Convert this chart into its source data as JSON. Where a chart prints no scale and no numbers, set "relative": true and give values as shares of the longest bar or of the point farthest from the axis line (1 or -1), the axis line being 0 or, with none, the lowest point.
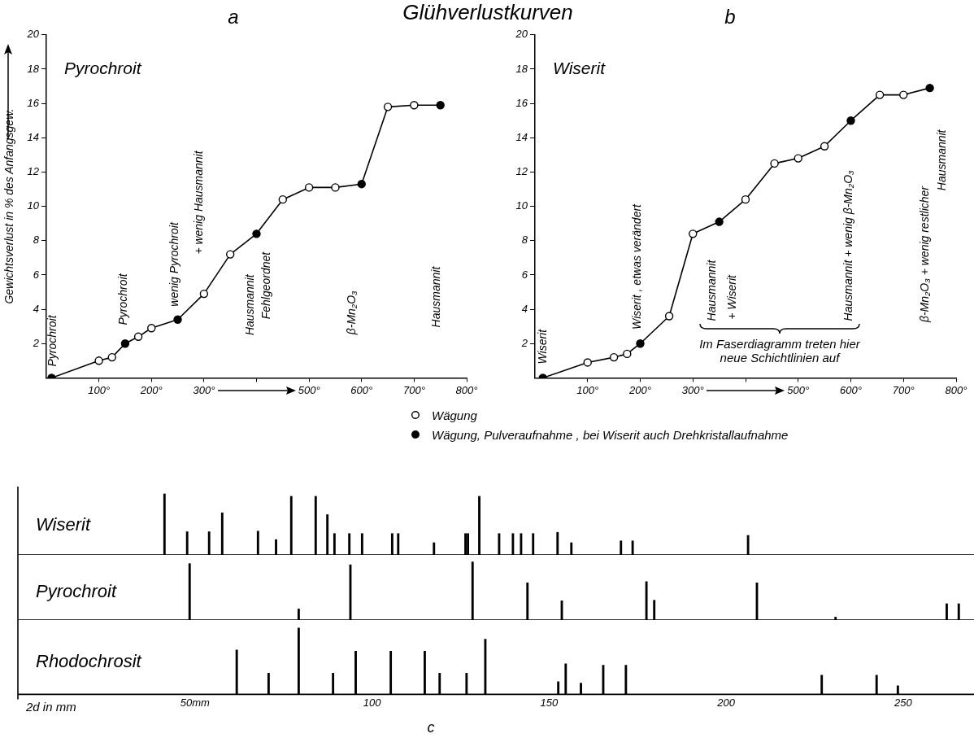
{
  "chart_data": [
    {
      "type": "line",
      "title": "a",
      "subtitle": "Pyrochroit",
      "ylabel": "Gewichtsverlust in % des Anfangsgew.",
      "annotations": [
        "Glühverlustkurven",
        "Pyrochroit",
        "Pyrochroit",
        "wenig Pyrochroit",
        "+ wenig Hausmannit",
        "Hausmannit",
        "Fehlgeordnet",
        "β-Mn₂O₃",
        "Hausmannit"
      ],
      "xlim": [
        0,
        800
      ],
      "xticks": [
        {
          "value": 100,
          "label": "100°"
        },
        {
          "value": 200,
          "label": "200°"
        },
        {
          "value": 300,
          "label": "300°"
        },
        {
          "value": 400,
          "label": null
        },
        {
          "value": 500,
          "label": "500°"
        },
        {
          "value": 600,
          "label": "600°"
        },
        {
          "value": 700,
          "label": "700°"
        },
        {
          "value": 800,
          "label": "800°"
        }
      ],
      "ylim": [
        0,
        20
      ],
      "yticks": [
        2,
        4,
        6,
        8,
        10,
        12,
        14,
        16,
        18,
        20
      ],
      "grid": false,
      "series": [
        {
          "type": "line",
          "color": "#000000",
          "marker": "none",
          "x": [
            10,
            100,
            125,
            150,
            175,
            200,
            250,
            300,
            350,
            400,
            450,
            500,
            550,
            600,
            650,
            700,
            750
          ],
          "values": [
            0,
            1.0,
            1.2,
            2.0,
            2.4,
            2.9,
            3.4,
            4.9,
            7.2,
            8.4,
            10.4,
            11.1,
            11.1,
            11.3,
            15.8,
            15.9,
            15.9
          ]
        },
        {
          "type": "scatter",
          "color": "#ffffff",
          "marker": "circle",
          "x": [
            100,
            125,
            175,
            200,
            300,
            350,
            450,
            500,
            550,
            650,
            700
          ],
          "values": [
            1.0,
            1.2,
            2.4,
            2.9,
            4.9,
            7.2,
            10.4,
            11.1,
            11.1,
            15.8,
            15.9
          ]
        },
        {
          "type": "scatter",
          "color": "#000000",
          "marker": "circle",
          "x": [
            10,
            150,
            250,
            400,
            600,
            750
          ],
          "values": [
            0,
            2.0,
            3.4,
            8.4,
            11.3,
            15.9
          ]
        }
      ]
    },
    {
      "type": "line",
      "title": "b",
      "subtitle": "Wiserit",
      "annotations": [
        "Im Faserdiagramm treten hier neue Schichtlinien auf",
        "Wiserit",
        "Wiserit , etwas verändert",
        "Hausmannit",
        "+ Wiserit",
        "Hausmannit + wenig β-Mn₂O₃",
        "β-Mn₂O₃ + wenig restlicher",
        "Hausmannit"
      ],
      "xlim": [
        0,
        800
      ],
      "xticks": [
        {
          "value": 100,
          "label": "100°"
        },
        {
          "value": 200,
          "label": "200°"
        },
        {
          "value": 300,
          "label": "300°"
        },
        {
          "value": 400,
          "label": null
        },
        {
          "value": 500,
          "label": "500°"
        },
        {
          "value": 600,
          "label": "600°"
        },
        {
          "value": 700,
          "label": "700°"
        },
        {
          "value": 800,
          "label": "800°"
        }
      ],
      "ylim": [
        0,
        20
      ],
      "yticks": [
        2,
        4,
        6,
        8,
        10,
        12,
        14,
        16,
        18,
        20
      ],
      "grid": false,
      "legend": "bottom",
      "series": [
        {
          "type": "line",
          "color": "#000000",
          "marker": "none",
          "x": [
            15,
            100,
            150,
            175,
            200,
            255,
            300,
            350,
            400,
            455,
            500,
            550,
            600,
            655,
            700,
            750
          ],
          "values": [
            0,
            0.9,
            1.2,
            1.4,
            2.0,
            3.6,
            8.4,
            9.1,
            10.4,
            12.5,
            12.8,
            13.5,
            15.0,
            16.5,
            16.5,
            16.9
          ]
        },
        {
          "type": "scatter",
          "name": "Wägung",
          "color": "#ffffff",
          "marker": "circle",
          "x": [
            100,
            150,
            175,
            255,
            300,
            400,
            455,
            500,
            550,
            655,
            700
          ],
          "values": [
            0.9,
            1.2,
            1.4,
            3.6,
            8.4,
            10.4,
            12.5,
            12.8,
            13.5,
            16.5,
            16.5
          ]
        },
        {
          "type": "scatter",
          "name": "Wägung, Pulveraufnahme , bei Wiserit auch Drehkristallaufnahme",
          "color": "#000000",
          "marker": "circle",
          "x": [
            15,
            200,
            350,
            600,
            750
          ],
          "values": [
            0,
            2.0,
            9.1,
            15.0,
            16.9
          ]
        }
      ]
    },
    {
      "type": "bar",
      "relative": true,
      "tick_labels": false,
      "xlim": [
        0,
        270
      ],
      "grid": false,
      "x": [
        41.4,
        47.8,
        54.0,
        57.7,
        67.8,
        72.9,
        77.2,
        84.1,
        87.4,
        89.4,
        93.6,
        97.2,
        105.7,
        107.4,
        117.5,
        126.4,
        127.1,
        130.3,
        135.9,
        139.8,
        142.1,
        145.5,
        152.4,
        156.3,
        170.3,
        173.6,
        206.2
      ],
      "series": [
        {
          "name": "Wiserit",
          "color": "#000000",
          "values": [
            1.0,
            0.38,
            0.38,
            0.69,
            0.39,
            0.25,
            0.96,
            0.96,
            0.66,
            0.35,
            0.35,
            0.35,
            0.35,
            0.35,
            0.2,
            0.35,
            0.35,
            0.96,
            0.35,
            0.35,
            0.35,
            0.35,
            0.37,
            0.2,
            0.23,
            0.23,
            0.32
          ]
        }
      ]
    },
    {
      "type": "bar",
      "relative": true,
      "tick_labels": false,
      "xlim": [
        0,
        270
      ],
      "grid": false,
      "x": [
        48.5,
        79.3,
        93.9,
        128.4,
        143.9,
        153.6,
        177.5,
        179.7,
        208.7,
        230.9,
        262.3,
        265.7
      ],
      "series": [
        {
          "name": "Pyrochroit",
          "color": "#000000",
          "values": [
            0.97,
            0.19,
            0.95,
            1.0,
            0.64,
            0.33,
            0.66,
            0.34,
            0.64,
            0.05,
            0.28,
            0.28
          ]
        }
      ]
    },
    {
      "type": "bar",
      "relative": true,
      "tick_labels": "x",
      "xlim": [
        0,
        270
      ],
      "grid": false,
      "xlabel": "2d in mm",
      "annotations": [
        "c"
      ],
      "xticks": [
        {
          "value": 50,
          "label": "50mm"
        },
        100,
        150,
        200,
        250
      ],
      "x": [
        61.8,
        70.8,
        79.3,
        89.0,
        95.4,
        105.3,
        114.9,
        119.1,
        126.7,
        132.0,
        152.6,
        154.7,
        159.0,
        165.3,
        171.7,
        227.0,
        242.5,
        248.5
      ],
      "series": [
        {
          "name": "Rhodochrosit",
          "color": "#000000",
          "values": [
            0.67,
            0.32,
            1.0,
            0.32,
            0.65,
            0.65,
            0.65,
            0.32,
            0.32,
            0.83,
            0.19,
            0.46,
            0.17,
            0.44,
            0.44,
            0.29,
            0.29,
            0.13
          ]
        }
      ]
    }
  ]
}
